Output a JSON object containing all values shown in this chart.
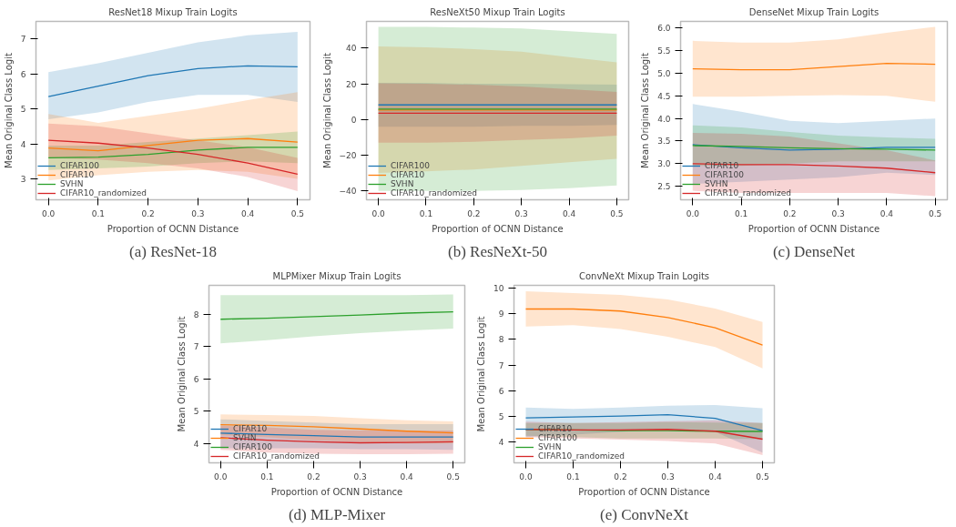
{
  "chart_data": [
    {
      "type": "line",
      "title": "ResNet18 Mixup Train Logits",
      "xlabel": "Proportion of OCNN Distance",
      "ylabel": "Mean Original Class Logit",
      "annotations": [
        "(a) ResNet-18"
      ],
      "legend": "bottom left",
      "x": [
        0,
        0.1,
        0.2,
        0.3,
        0.4,
        0.5
      ],
      "xlim": [
        -0.025,
        0.525
      ],
      "ylim": [
        2.4,
        7.5
      ],
      "xticks": [
        {
          "value": 0,
          "label": "0.0"
        },
        {
          "value": 0.1,
          "label": "0.1"
        },
        {
          "value": 0.2,
          "label": "0.2"
        },
        {
          "value": 0.3,
          "label": "0.3"
        },
        {
          "value": 0.4,
          "label": "0.4"
        },
        {
          "value": 0.5,
          "label": "0.5"
        }
      ],
      "yticks": [
        3,
        4,
        5,
        6,
        7
      ],
      "series": [
        {
          "name": "CIFAR100",
          "color": "#1f77b4",
          "values": [
            5.35,
            5.65,
            5.95,
            6.15,
            6.23,
            6.2
          ],
          "lower": [
            4.7,
            4.9,
            5.2,
            5.4,
            5.4,
            5.2
          ],
          "upper": [
            6.05,
            6.3,
            6.6,
            6.9,
            7.1,
            7.2
          ]
        },
        {
          "name": "CIFAR10",
          "color": "#ff7f0e",
          "values": [
            3.88,
            3.8,
            3.95,
            4.1,
            4.15,
            4.05
          ],
          "lower": [
            2.95,
            3.1,
            3.2,
            3.25,
            3.2,
            3.0
          ],
          "upper": [
            4.85,
            4.6,
            4.8,
            5.0,
            5.25,
            5.48
          ]
        },
        {
          "name": "SVHN",
          "color": "#2ca02c",
          "values": [
            3.6,
            3.62,
            3.7,
            3.82,
            3.9,
            3.9
          ],
          "lower": [
            3.25,
            3.3,
            3.35,
            3.45,
            3.5,
            3.45
          ],
          "upper": [
            3.95,
            3.95,
            4.05,
            4.15,
            4.25,
            4.35
          ]
        },
        {
          "name": "CIFAR10_randomized",
          "color": "#d62728",
          "values": [
            4.1,
            4.02,
            3.88,
            3.7,
            3.45,
            3.13
          ],
          "lower": [
            3.6,
            3.55,
            3.45,
            3.3,
            3.05,
            2.65
          ],
          "upper": [
            4.58,
            4.5,
            4.3,
            4.1,
            3.9,
            3.6
          ]
        }
      ]
    },
    {
      "type": "line",
      "title": "ResNeXt50 Mixup Train Logits",
      "xlabel": "Proportion of OCNN Distance",
      "ylabel": "Mean Original Class Logit",
      "annotations": [
        "(b) ResNeXt-50"
      ],
      "legend": "bottom left",
      "x": [
        0,
        0.1,
        0.2,
        0.3,
        0.4,
        0.5
      ],
      "xlim": [
        -0.025,
        0.525
      ],
      "ylim": [
        -45,
        55
      ],
      "xticks": [
        {
          "value": 0,
          "label": "0.0"
        },
        {
          "value": 0.1,
          "label": "0.1"
        },
        {
          "value": 0.2,
          "label": "0.2"
        },
        {
          "value": 0.3,
          "label": "0.3"
        },
        {
          "value": 0.4,
          "label": "0.4"
        },
        {
          "value": 0.5,
          "label": "0.5"
        }
      ],
      "yticks": [
        {
          "value": -40,
          "label": "−40"
        },
        {
          "value": -20,
          "label": "−20"
        },
        0,
        20,
        40
      ],
      "series": [
        {
          "name": "CIFAR100",
          "color": "#1f77b4",
          "values": [
            8.2,
            8.2,
            8.2,
            8.2,
            8.2,
            8.2
          ],
          "lower": [
            -4,
            -4,
            -4,
            -3.5,
            -3.5,
            -3
          ],
          "upper": [
            20.5,
            20.5,
            20,
            20,
            19.8,
            19.5
          ]
        },
        {
          "name": "CIFAR10",
          "color": "#ff7f0e",
          "values": [
            5.3,
            5.3,
            5.3,
            5.3,
            5.3,
            5.3
          ],
          "lower": [
            -30,
            -29,
            -28,
            -26,
            -24,
            -22
          ],
          "upper": [
            41,
            40.5,
            39.5,
            38,
            35,
            32
          ]
        },
        {
          "name": "SVHN",
          "color": "#2ca02c",
          "values": [
            5.8,
            5.8,
            5.8,
            5.8,
            5.8,
            5.8
          ],
          "lower": [
            -40,
            -40,
            -40,
            -39.5,
            -38.5,
            -37
          ],
          "upper": [
            52,
            52,
            51.5,
            51,
            49.5,
            48
          ]
        },
        {
          "name": "CIFAR10_randomized",
          "color": "#d62728",
          "values": [
            3.5,
            3.5,
            3.5,
            3.5,
            3.5,
            3.5
          ],
          "lower": [
            -13,
            -13,
            -12.5,
            -11.5,
            -10.5,
            -9
          ],
          "upper": [
            20.3,
            20,
            19.5,
            18.5,
            17,
            15.5
          ]
        }
      ]
    },
    {
      "type": "line",
      "title": "DenseNet Mixup Train Logits",
      "xlabel": "Proportion of OCNN Distance",
      "ylabel": "Mean Original Class Logit",
      "annotations": [
        "(c) DenseNet"
      ],
      "legend": "bottom left",
      "x": [
        0,
        0.1,
        0.2,
        0.3,
        0.4,
        0.5
      ],
      "xlim": [
        -0.025,
        0.525
      ],
      "ylim": [
        2.2,
        6.15
      ],
      "xticks": [
        {
          "value": 0,
          "label": "0.0"
        },
        {
          "value": 0.1,
          "label": "0.1"
        },
        {
          "value": 0.2,
          "label": "0.2"
        },
        {
          "value": 0.3,
          "label": "0.3"
        },
        {
          "value": 0.4,
          "label": "0.4"
        },
        {
          "value": 0.5,
          "label": "0.5"
        }
      ],
      "yticks": [
        2.5,
        {
          "value": 3,
          "label": "3.0"
        },
        3.5,
        {
          "value": 4,
          "label": "4.0"
        },
        4.5,
        {
          "value": 5,
          "label": "5.0"
        },
        5.5,
        {
          "value": 6,
          "label": "6.0"
        }
      ],
      "series": [
        {
          "name": "CIFAR10",
          "color": "#1f77b4",
          "values": [
            3.42,
            3.35,
            3.3,
            3.32,
            3.36,
            3.36
          ],
          "lower": [
            2.55,
            2.6,
            2.65,
            2.7,
            2.8,
            2.75
          ],
          "upper": [
            4.32,
            4.15,
            3.95,
            3.9,
            3.95,
            4.0
          ]
        },
        {
          "name": "CIFAR100",
          "color": "#ff7f0e",
          "values": [
            5.1,
            5.08,
            5.08,
            5.15,
            5.22,
            5.2
          ],
          "lower": [
            4.48,
            4.48,
            4.5,
            4.52,
            4.5,
            4.37
          ],
          "upper": [
            5.72,
            5.68,
            5.68,
            5.75,
            5.9,
            6.03
          ]
        },
        {
          "name": "SVHN",
          "color": "#2ca02c",
          "values": [
            3.4,
            3.38,
            3.35,
            3.33,
            3.32,
            3.3
          ],
          "lower": [
            2.95,
            2.95,
            3.0,
            3.05,
            3.05,
            3.05
          ],
          "upper": [
            3.85,
            3.8,
            3.7,
            3.62,
            3.58,
            3.55
          ]
        },
        {
          "name": "CIFAR10_randomized",
          "color": "#d62728",
          "values": [
            3.0,
            2.98,
            2.98,
            2.95,
            2.9,
            2.8
          ],
          "lower": [
            2.4,
            2.35,
            2.35,
            2.35,
            2.35,
            2.28
          ],
          "upper": [
            3.68,
            3.66,
            3.6,
            3.45,
            3.3,
            3.07
          ]
        }
      ]
    },
    {
      "type": "line",
      "title": "MLPMixer Mixup Train Logits",
      "xlabel": "Proportion of OCNN Distance",
      "ylabel": "Mean Original Class Logit",
      "annotations": [
        "(d) MLP-Mixer"
      ],
      "legend": "bottom left",
      "x": [
        0,
        0.1,
        0.2,
        0.3,
        0.4,
        0.5
      ],
      "xlim": [
        -0.025,
        0.525
      ],
      "ylim": [
        3.4,
        8.9
      ],
      "xticks": [
        {
          "value": 0,
          "label": "0.0"
        },
        {
          "value": 0.1,
          "label": "0.1"
        },
        {
          "value": 0.2,
          "label": "0.2"
        },
        {
          "value": 0.3,
          "label": "0.3"
        },
        {
          "value": 0.4,
          "label": "0.4"
        },
        {
          "value": 0.5,
          "label": "0.5"
        }
      ],
      "yticks": [
        4,
        5,
        6,
        7,
        8
      ],
      "series": [
        {
          "name": "CIFAR10",
          "color": "#1f77b4",
          "values": [
            4.32,
            4.28,
            4.24,
            4.2,
            4.2,
            4.2
          ],
          "lower": [
            3.85,
            3.85,
            3.85,
            3.82,
            3.82,
            3.8
          ],
          "upper": [
            4.75,
            4.7,
            4.65,
            4.6,
            4.6,
            4.6
          ]
        },
        {
          "name": "SVHN",
          "color": "#ff7f0e",
          "values": [
            4.58,
            4.56,
            4.52,
            4.45,
            4.38,
            4.33
          ],
          "lower": [
            4.25,
            4.2,
            4.1,
            4.05,
            4.0,
            4.0
          ],
          "upper": [
            4.9,
            4.88,
            4.85,
            4.78,
            4.72,
            4.68
          ]
        },
        {
          "name": "CIFAR100",
          "color": "#2ca02c",
          "values": [
            7.85,
            7.88,
            7.93,
            7.98,
            8.04,
            8.08
          ],
          "lower": [
            7.1,
            7.2,
            7.32,
            7.42,
            7.5,
            7.56
          ],
          "upper": [
            8.6,
            8.6,
            8.6,
            8.6,
            8.6,
            8.62
          ]
        },
        {
          "name": "CIFAR10_randomized",
          "color": "#d62728",
          "values": [
            4.18,
            4.1,
            4.05,
            4.02,
            4.03,
            4.05
          ],
          "lower": [
            3.8,
            3.72,
            3.68,
            3.67,
            3.67,
            3.68
          ],
          "upper": [
            4.55,
            4.5,
            4.42,
            4.4,
            4.4,
            4.4
          ]
        }
      ]
    },
    {
      "type": "line",
      "title": "ConvNeXt Mixup Train Logits",
      "xlabel": "Proportion of OCNN Distance",
      "ylabel": "Mean Original Class Logit",
      "annotations": [
        "(e) ConvNeXt"
      ],
      "legend": "bottom left",
      "x": [
        0,
        0.1,
        0.2,
        0.3,
        0.4,
        0.5
      ],
      "xlim": [
        -0.025,
        0.525
      ],
      "ylim": [
        3.2,
        10.1
      ],
      "xticks": [
        {
          "value": 0,
          "label": "0.0"
        },
        {
          "value": 0.1,
          "label": "0.1"
        },
        {
          "value": 0.2,
          "label": "0.2"
        },
        {
          "value": 0.3,
          "label": "0.3"
        },
        {
          "value": 0.4,
          "label": "0.4"
        },
        {
          "value": 0.5,
          "label": "0.5"
        }
      ],
      "yticks": [
        4,
        5,
        6,
        7,
        8,
        9,
        10
      ],
      "series": [
        {
          "name": "CIFAR10",
          "color": "#1f77b4",
          "values": [
            4.95,
            4.98,
            5.02,
            5.07,
            4.93,
            4.45
          ],
          "lower": [
            4.2,
            4.3,
            4.4,
            4.5,
            4.4,
            3.6
          ],
          "upper": [
            5.35,
            5.3,
            5.35,
            5.42,
            5.45,
            5.32
          ]
        },
        {
          "name": "CIFAR100",
          "color": "#ff7f0e",
          "values": [
            9.18,
            9.18,
            9.1,
            8.85,
            8.45,
            7.78
          ],
          "lower": [
            8.5,
            8.55,
            8.4,
            8.1,
            7.7,
            6.87
          ],
          "upper": [
            9.87,
            9.8,
            9.73,
            9.55,
            9.2,
            8.68
          ]
        },
        {
          "name": "SVHN",
          "color": "#2ca02c",
          "values": [
            4.5,
            4.48,
            4.45,
            4.45,
            4.43,
            4.42
          ],
          "lower": [
            4.25,
            4.2,
            4.15,
            4.15,
            4.15,
            4.12
          ],
          "upper": [
            4.75,
            4.75,
            4.75,
            4.78,
            4.77,
            4.75
          ]
        },
        {
          "name": "CIFAR10_randomized",
          "color": "#d62728",
          "values": [
            4.5,
            4.48,
            4.48,
            4.5,
            4.43,
            4.12
          ],
          "lower": [
            4.2,
            4.15,
            4.1,
            4.05,
            3.95,
            3.5
          ],
          "upper": [
            4.8,
            4.75,
            4.78,
            4.82,
            4.85,
            4.75
          ]
        }
      ]
    }
  ]
}
